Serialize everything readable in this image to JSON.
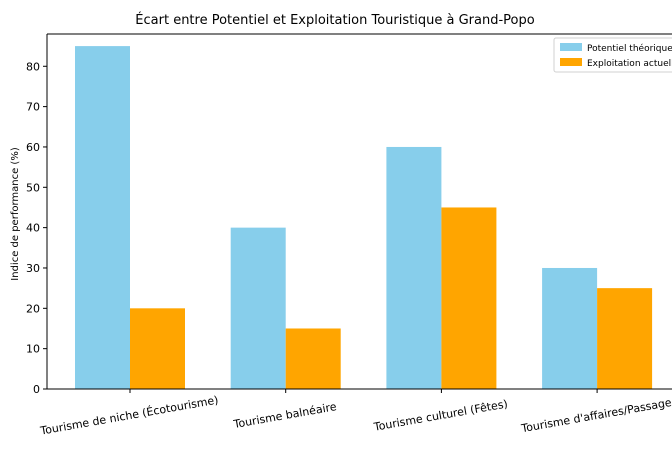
{
  "chart_data": {
    "type": "bar",
    "title": "Écart entre Potentiel et Exploitation Touristique à Grand-Popo",
    "xlabel": "",
    "ylabel": "Indice de performance (%)",
    "categories": [
      "Tourisme de niche (Écotourisme)",
      "Tourisme balnéaire",
      "Tourisme culturel (Fêtes)",
      "Tourisme d'affaires/Passage"
    ],
    "series": [
      {
        "name": "Potentiel théorique",
        "values": [
          85,
          40,
          60,
          30
        ],
        "color": "#87CEEB"
      },
      {
        "name": "Exploitation actuelle",
        "values": [
          20,
          15,
          45,
          25
        ],
        "color": "#FFA500"
      }
    ],
    "ylim": [
      0,
      88
    ],
    "yticks": [
      0,
      10,
      20,
      30,
      40,
      50,
      60,
      70,
      80
    ],
    "grid": false,
    "legend": "top-right"
  }
}
